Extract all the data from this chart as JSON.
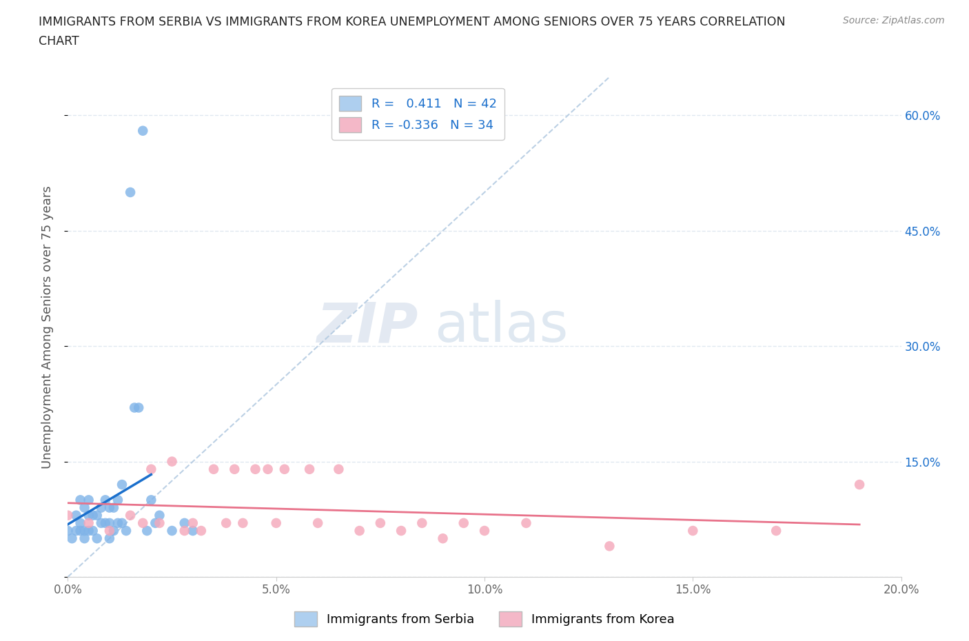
{
  "title_line1": "IMMIGRANTS FROM SERBIA VS IMMIGRANTS FROM KOREA UNEMPLOYMENT AMONG SENIORS OVER 75 YEARS CORRELATION",
  "title_line2": "CHART",
  "source": "Source: ZipAtlas.com",
  "ylabel": "Unemployment Among Seniors over 75 years",
  "xlim": [
    0.0,
    0.2
  ],
  "ylim": [
    0.0,
    0.65
  ],
  "xticks": [
    0.0,
    0.05,
    0.1,
    0.15,
    0.2
  ],
  "xticklabels": [
    "0.0%",
    "5.0%",
    "10.0%",
    "15.0%",
    "20.0%"
  ],
  "yticks": [
    0.0,
    0.15,
    0.3,
    0.45,
    0.6
  ],
  "yticklabels_right": [
    "",
    "15.0%",
    "30.0%",
    "45.0%",
    "60.0%"
  ],
  "serbia_R": 0.411,
  "serbia_N": 42,
  "korea_R": -0.336,
  "korea_N": 34,
  "serbia_color": "#7fb3e8",
  "korea_color": "#f4a7b9",
  "serbia_line_color": "#1a6fcc",
  "korea_line_color": "#e8728a",
  "dashed_line_color": "#b0c8e0",
  "background_color": "#ffffff",
  "grid_color": "#e0e8f0",
  "serbia_x": [
    0.0,
    0.001,
    0.002,
    0.002,
    0.003,
    0.003,
    0.003,
    0.004,
    0.004,
    0.004,
    0.005,
    0.005,
    0.005,
    0.006,
    0.006,
    0.007,
    0.007,
    0.008,
    0.008,
    0.009,
    0.009,
    0.01,
    0.01,
    0.01,
    0.011,
    0.011,
    0.012,
    0.012,
    0.013,
    0.013,
    0.014,
    0.015,
    0.016,
    0.017,
    0.018,
    0.019,
    0.02,
    0.021,
    0.022,
    0.025,
    0.028,
    0.03
  ],
  "serbia_y": [
    0.06,
    0.05,
    0.06,
    0.08,
    0.06,
    0.07,
    0.1,
    0.05,
    0.06,
    0.09,
    0.06,
    0.08,
    0.1,
    0.06,
    0.08,
    0.05,
    0.08,
    0.07,
    0.09,
    0.07,
    0.1,
    0.05,
    0.07,
    0.09,
    0.06,
    0.09,
    0.07,
    0.1,
    0.07,
    0.12,
    0.06,
    0.5,
    0.22,
    0.22,
    0.58,
    0.06,
    0.1,
    0.07,
    0.08,
    0.06,
    0.07,
    0.06
  ],
  "korea_x": [
    0.0,
    0.005,
    0.01,
    0.015,
    0.018,
    0.02,
    0.022,
    0.025,
    0.028,
    0.03,
    0.032,
    0.035,
    0.038,
    0.04,
    0.042,
    0.045,
    0.048,
    0.05,
    0.052,
    0.058,
    0.06,
    0.065,
    0.07,
    0.075,
    0.08,
    0.085,
    0.09,
    0.095,
    0.1,
    0.11,
    0.13,
    0.15,
    0.17,
    0.19
  ],
  "korea_y": [
    0.08,
    0.07,
    0.06,
    0.08,
    0.07,
    0.14,
    0.07,
    0.15,
    0.06,
    0.07,
    0.06,
    0.14,
    0.07,
    0.14,
    0.07,
    0.14,
    0.14,
    0.07,
    0.14,
    0.14,
    0.07,
    0.14,
    0.06,
    0.07,
    0.06,
    0.07,
    0.05,
    0.07,
    0.06,
    0.07,
    0.04,
    0.06,
    0.06,
    0.12
  ],
  "watermark_zip": "ZIP",
  "watermark_atlas": "atlas",
  "legend_box_color_serbia": "#aecfef",
  "legend_box_color_korea": "#f4b8c8",
  "serbia_label": "Immigrants from Serbia",
  "korea_label": "Immigrants from Korea"
}
